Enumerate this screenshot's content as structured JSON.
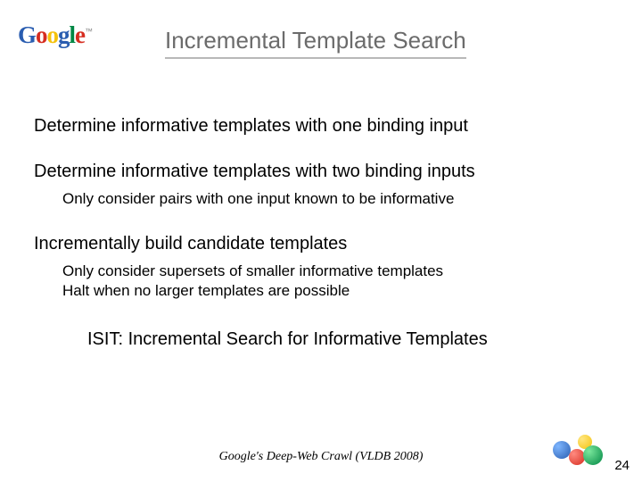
{
  "logo": {
    "letters": [
      "G",
      "o",
      "o",
      "g",
      "l",
      "e"
    ],
    "trademark": "™",
    "colors": {
      "G": "#2a5db0",
      "o1": "#d62d20",
      "o2": "#f4c20d",
      "g": "#2a5db0",
      "l": "#008744",
      "e": "#d62d20"
    }
  },
  "title": "Incremental Template Search",
  "bullets": {
    "b1": "Determine informative templates with one binding input",
    "b2": "Determine informative templates with two binding inputs",
    "b2_sub1": "Only consider pairs with one input known to be informative",
    "b3": "Incrementally build candidate templates",
    "b3_sub1": "Only consider supersets of smaller informative templates",
    "b3_sub2": "Halt when no larger templates are possible",
    "isit": "ISIT: Incremental Search for Informative Templates"
  },
  "footer": "Google's Deep-Web Crawl (VLDB 2008)",
  "page_number": "24",
  "style": {
    "title_color": "#6b6b6b",
    "title_underline": "#b8b8b8",
    "title_fontsize": 26,
    "main_fontsize": 20,
    "sub_fontsize": 17,
    "footer_fontsize": 14,
    "background": "#ffffff",
    "ball_colors": {
      "blue": "#2a5db0",
      "red": "#d62d20",
      "yellow": "#f4c20d",
      "green": "#008744"
    }
  }
}
